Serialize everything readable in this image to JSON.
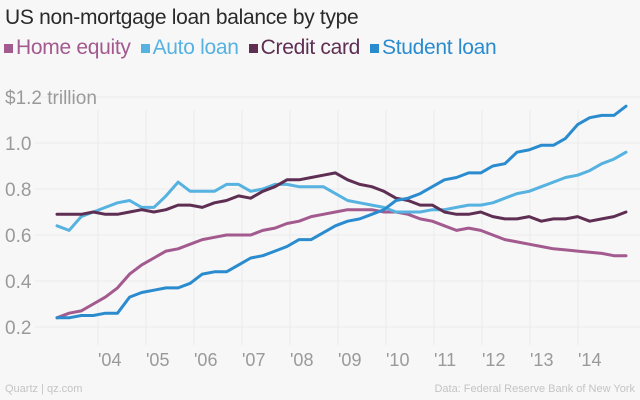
{
  "header": {
    "title": "US non-mortgage loan balance by type"
  },
  "legend": [
    {
      "label": "Home equity",
      "color": "#a35a8e"
    },
    {
      "label": "Auto loan",
      "color": "#56b2e0"
    },
    {
      "label": "Credit card",
      "color": "#5e2f53"
    },
    {
      "label": "Student loan",
      "color": "#2a8ccf"
    }
  ],
  "footer": {
    "source_left": "Quartz | qz.com",
    "source_right": "Data: Federal Reserve Bank of New York"
  },
  "chart_data": {
    "type": "line",
    "title": "US non-mortgage loan balance by type",
    "xlabel": "",
    "ylabel": "$ trillion",
    "ylim": [
      0.2,
      1.2
    ],
    "yticks": [
      "0.2",
      "0.4",
      "0.6",
      "0.8",
      "1.0",
      "$1.2 trillion"
    ],
    "xticks": [
      "'04",
      "'05",
      "'06",
      "'07",
      "'08",
      "'09",
      "'10",
      "'11",
      "'12",
      "'13",
      "'14"
    ],
    "grid": true,
    "legend_position": "top",
    "x": [
      "2003Q1",
      "2003Q2",
      "2003Q3",
      "2003Q4",
      "2004Q1",
      "2004Q2",
      "2004Q3",
      "2004Q4",
      "2005Q1",
      "2005Q2",
      "2005Q3",
      "2005Q4",
      "2006Q1",
      "2006Q2",
      "2006Q3",
      "2006Q4",
      "2007Q1",
      "2007Q2",
      "2007Q3",
      "2007Q4",
      "2008Q1",
      "2008Q2",
      "2008Q3",
      "2008Q4",
      "2009Q1",
      "2009Q2",
      "2009Q3",
      "2009Q4",
      "2010Q1",
      "2010Q2",
      "2010Q3",
      "2010Q4",
      "2011Q1",
      "2011Q2",
      "2011Q3",
      "2011Q4",
      "2012Q1",
      "2012Q2",
      "2012Q3",
      "2012Q4",
      "2013Q1",
      "2013Q2",
      "2013Q3",
      "2013Q4",
      "2014Q1",
      "2014Q2",
      "2014Q3",
      "2014Q4"
    ],
    "series": [
      {
        "name": "Home equity",
        "color": "#a35a8e",
        "values": [
          0.24,
          0.26,
          0.27,
          0.3,
          0.33,
          0.37,
          0.43,
          0.47,
          0.5,
          0.53,
          0.54,
          0.56,
          0.58,
          0.59,
          0.6,
          0.6,
          0.6,
          0.62,
          0.63,
          0.65,
          0.66,
          0.68,
          0.69,
          0.7,
          0.71,
          0.71,
          0.71,
          0.7,
          0.7,
          0.69,
          0.67,
          0.66,
          0.64,
          0.62,
          0.63,
          0.62,
          0.6,
          0.58,
          0.57,
          0.56,
          0.55,
          0.54,
          0.535,
          0.53,
          0.525,
          0.52,
          0.51,
          0.51
        ]
      },
      {
        "name": "Auto loan",
        "color": "#56b2e0",
        "values": [
          0.64,
          0.62,
          0.68,
          0.7,
          0.72,
          0.74,
          0.75,
          0.72,
          0.72,
          0.77,
          0.83,
          0.79,
          0.79,
          0.79,
          0.82,
          0.82,
          0.79,
          0.8,
          0.82,
          0.82,
          0.81,
          0.81,
          0.81,
          0.78,
          0.75,
          0.74,
          0.73,
          0.72,
          0.7,
          0.7,
          0.7,
          0.71,
          0.71,
          0.72,
          0.73,
          0.73,
          0.74,
          0.76,
          0.78,
          0.79,
          0.81,
          0.83,
          0.85,
          0.86,
          0.88,
          0.91,
          0.93,
          0.96
        ]
      },
      {
        "name": "Credit card",
        "color": "#5e2f53",
        "values": [
          0.69,
          0.69,
          0.69,
          0.7,
          0.69,
          0.69,
          0.7,
          0.71,
          0.7,
          0.71,
          0.73,
          0.73,
          0.72,
          0.74,
          0.75,
          0.77,
          0.76,
          0.79,
          0.81,
          0.84,
          0.84,
          0.85,
          0.86,
          0.87,
          0.84,
          0.82,
          0.81,
          0.79,
          0.76,
          0.75,
          0.73,
          0.73,
          0.7,
          0.69,
          0.69,
          0.7,
          0.68,
          0.67,
          0.67,
          0.68,
          0.66,
          0.67,
          0.67,
          0.68,
          0.66,
          0.67,
          0.68,
          0.7
        ]
      },
      {
        "name": "Student loan",
        "color": "#2a8ccf",
        "values": [
          0.24,
          0.24,
          0.25,
          0.25,
          0.26,
          0.26,
          0.33,
          0.35,
          0.36,
          0.37,
          0.37,
          0.39,
          0.43,
          0.44,
          0.44,
          0.47,
          0.5,
          0.51,
          0.53,
          0.55,
          0.58,
          0.58,
          0.61,
          0.64,
          0.66,
          0.67,
          0.69,
          0.71,
          0.75,
          0.76,
          0.78,
          0.81,
          0.84,
          0.85,
          0.87,
          0.87,
          0.9,
          0.91,
          0.96,
          0.97,
          0.99,
          0.99,
          1.02,
          1.08,
          1.11,
          1.12,
          1.12,
          1.16
        ]
      }
    ]
  }
}
